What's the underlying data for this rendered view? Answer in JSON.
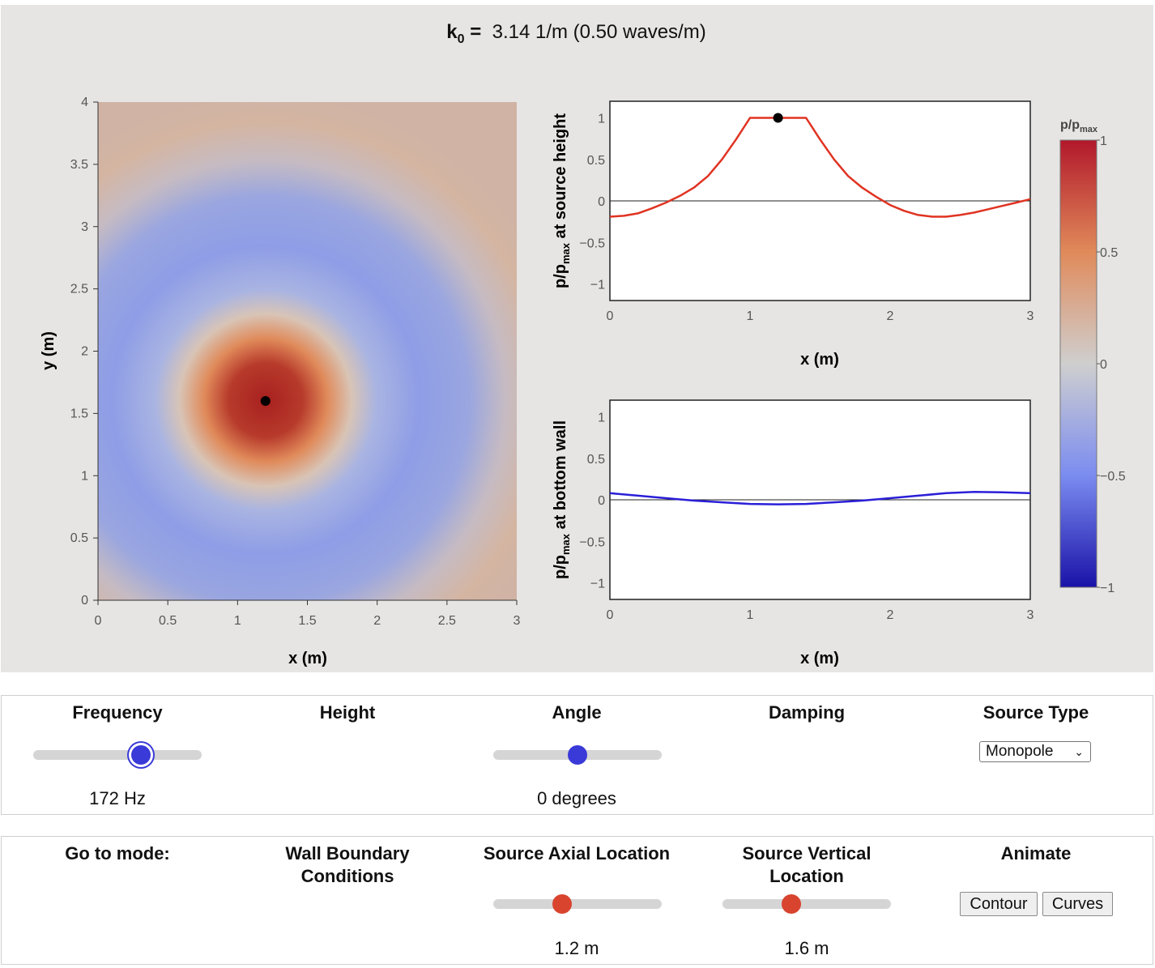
{
  "header": {
    "k_symbol": "k",
    "k_subscript": "0",
    "equals": "=",
    "k_value": "3.14 1/m (0.50 waves/m)"
  },
  "colorbar": {
    "label": "p/p",
    "label_sub": "max",
    "ticks": [
      "1",
      "0.5",
      "0",
      "−0.5",
      "−1"
    ],
    "colors": {
      "top": "#b2182b",
      "upper": "#e08a5a",
      "mid": "#cfcfcf",
      "lower": "#7b8cf0",
      "bottom": "#1a12a8"
    }
  },
  "contour": {
    "xlabel": "x (m)",
    "ylabel": "y (m)",
    "xticks": [
      "0",
      "0.5",
      "1",
      "1.5",
      "2",
      "2.5",
      "3"
    ],
    "yticks": [
      "0",
      "0.5",
      "1",
      "1.5",
      "2",
      "2.5",
      "3",
      "3.5",
      "4"
    ],
    "source_x": 1.2,
    "source_y": 1.6,
    "xlim": [
      0,
      3
    ],
    "ylim": [
      0,
      4
    ]
  },
  "chart_data": [
    {
      "type": "line",
      "title": "",
      "xlabel": "x (m)",
      "ylabel": "p/p_max at source height",
      "ylabel_main": "p/p",
      "ylabel_sub": "max",
      "ylabel_rest": " at source height",
      "xlim": [
        0,
        3
      ],
      "ylim": [
        -1.2,
        1.2
      ],
      "xticks": [
        "0",
        "1",
        "2",
        "3"
      ],
      "yticks": [
        "1",
        "0.5",
        "0",
        "−0.5",
        "−1"
      ],
      "color": "#e03322",
      "x": [
        0,
        0.1,
        0.2,
        0.3,
        0.4,
        0.5,
        0.6,
        0.7,
        0.8,
        0.9,
        1.0,
        1.1,
        1.2,
        1.3,
        1.4,
        1.5,
        1.6,
        1.7,
        1.8,
        1.9,
        2.0,
        2.1,
        2.2,
        2.3,
        2.4,
        2.5,
        2.6,
        2.7,
        2.8,
        2.9,
        3.0
      ],
      "y": [
        -0.19,
        -0.18,
        -0.15,
        -0.09,
        -0.02,
        0.06,
        0.16,
        0.3,
        0.5,
        0.74,
        1.0,
        1.0,
        1.0,
        1.0,
        1.0,
        0.74,
        0.5,
        0.3,
        0.16,
        0.05,
        -0.05,
        -0.12,
        -0.17,
        -0.19,
        -0.19,
        -0.17,
        -0.14,
        -0.1,
        -0.06,
        -0.02,
        0.02
      ],
      "marker_x": 1.2,
      "marker_y": 1.0
    },
    {
      "type": "line",
      "title": "",
      "xlabel": "x (m)",
      "ylabel": "p/p_max at bottom wall",
      "ylabel_main": "p/p",
      "ylabel_sub": "max",
      "ylabel_rest": " at bottom wall",
      "xlim": [
        0,
        3
      ],
      "ylim": [
        -1.2,
        1.2
      ],
      "xticks": [
        "0",
        "1",
        "2",
        "3"
      ],
      "yticks": [
        "1",
        "0.5",
        "0",
        "−0.5",
        "−1"
      ],
      "color": "#2a1fd8",
      "x": [
        0,
        0.2,
        0.4,
        0.6,
        0.8,
        1.0,
        1.2,
        1.4,
        1.6,
        1.8,
        2.0,
        2.2,
        2.4,
        2.6,
        2.8,
        3.0
      ],
      "y": [
        0.08,
        0.05,
        0.02,
        -0.01,
        -0.03,
        -0.05,
        -0.055,
        -0.05,
        -0.03,
        -0.01,
        0.02,
        0.05,
        0.08,
        0.095,
        0.09,
        0.08
      ]
    }
  ],
  "controls_row1": {
    "frequency": {
      "title": "Frequency",
      "value": "172 Hz",
      "fraction": 0.64
    },
    "height": {
      "title": "Height"
    },
    "angle": {
      "title": "Angle",
      "value": "0 degrees",
      "fraction": 0.5
    },
    "damping": {
      "title": "Damping"
    },
    "source_type": {
      "title": "Source Type",
      "selected": "Monopole"
    }
  },
  "controls_row2": {
    "mode": {
      "title": "Go to mode:"
    },
    "wall": {
      "title_line1": "Wall Boundary",
      "title_line2": "Conditions"
    },
    "axial": {
      "title": "Source Axial Location",
      "value": "1.2 m",
      "fraction": 0.41
    },
    "vertical": {
      "title_line1": "Source Vertical",
      "title_line2": "Location",
      "value": "1.6 m",
      "fraction": 0.41
    },
    "animate": {
      "title": "Animate",
      "contour_label": "Contour",
      "curves_label": "Curves"
    }
  }
}
